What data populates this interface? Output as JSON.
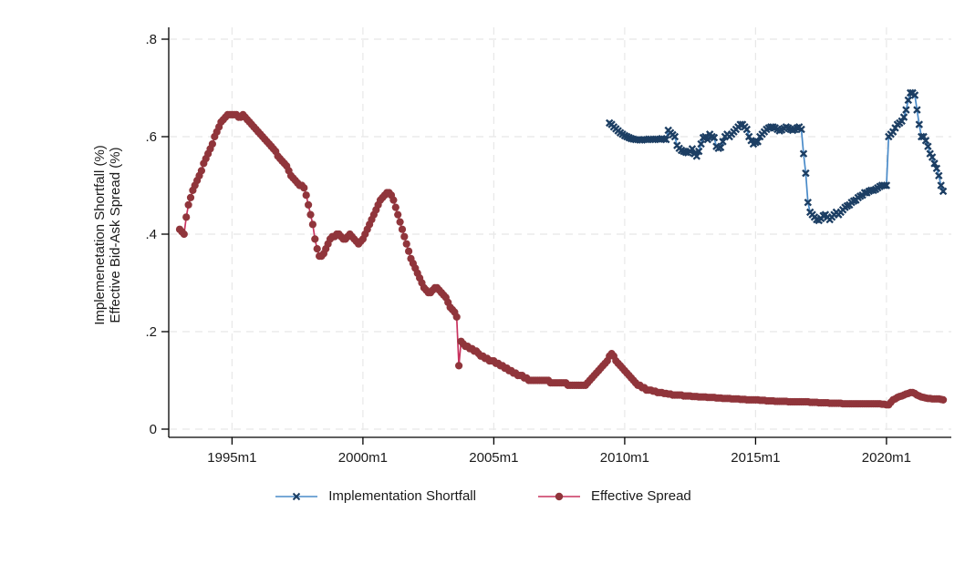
{
  "page": {
    "background": "#ffffff"
  },
  "chart_data": {
    "type": "line",
    "title": "",
    "xlabel": "",
    "ylabel_line1": "Implemenetation Shortfall (%)",
    "ylabel_line2": "Effective Bid-Ask Spread (%)",
    "x_tick_labels": [
      "1995m1",
      "2000m1",
      "2005m1",
      "2010m1",
      "2015m1",
      "2020m1"
    ],
    "y_tick_labels": [
      "0",
      ".2",
      ".4",
      ".6",
      ".8"
    ],
    "y_tick_values": [
      0,
      0.2,
      0.4,
      0.6,
      0.8
    ],
    "ylim": [
      0,
      0.8
    ],
    "xlim": [
      "1992m8",
      "2022m8"
    ],
    "grid": true,
    "grid_color": "#e8e8e8",
    "axis_color": "#000000",
    "legend_position": "bottom-center",
    "frequency": "monthly",
    "series": [
      {
        "name": "Effective Spread",
        "marker": "circle",
        "line_color": "#c9335f",
        "marker_color": "#90353b",
        "start": "1993m1",
        "values": [
          0.41,
          0.405,
          0.4,
          0.435,
          0.46,
          0.475,
          0.49,
          0.5,
          0.51,
          0.52,
          0.53,
          0.545,
          0.555,
          0.565,
          0.575,
          0.585,
          0.6,
          0.61,
          0.62,
          0.63,
          0.635,
          0.64,
          0.645,
          0.645,
          0.645,
          0.645,
          0.645,
          0.64,
          0.64,
          0.645,
          0.64,
          0.635,
          0.63,
          0.625,
          0.62,
          0.615,
          0.61,
          0.605,
          0.6,
          0.595,
          0.59,
          0.585,
          0.58,
          0.575,
          0.57,
          0.56,
          0.555,
          0.55,
          0.545,
          0.54,
          0.53,
          0.52,
          0.515,
          0.51,
          0.505,
          0.5,
          0.5,
          0.495,
          0.48,
          0.46,
          0.44,
          0.42,
          0.39,
          0.37,
          0.355,
          0.355,
          0.36,
          0.37,
          0.38,
          0.39,
          0.395,
          0.395,
          0.4,
          0.4,
          0.395,
          0.39,
          0.39,
          0.395,
          0.4,
          0.395,
          0.39,
          0.385,
          0.38,
          0.385,
          0.39,
          0.4,
          0.41,
          0.42,
          0.43,
          0.44,
          0.45,
          0.46,
          0.47,
          0.475,
          0.48,
          0.485,
          0.485,
          0.48,
          0.47,
          0.455,
          0.44,
          0.425,
          0.41,
          0.395,
          0.38,
          0.365,
          0.35,
          0.34,
          0.33,
          0.32,
          0.31,
          0.3,
          0.29,
          0.285,
          0.28,
          0.28,
          0.285,
          0.29,
          0.29,
          0.285,
          0.28,
          0.275,
          0.27,
          0.26,
          0.25,
          0.245,
          0.24,
          0.23,
          0.13,
          0.18,
          0.175,
          0.17,
          0.17,
          0.165,
          0.165,
          0.16,
          0.16,
          0.155,
          0.15,
          0.15,
          0.145,
          0.145,
          0.14,
          0.14,
          0.14,
          0.135,
          0.135,
          0.13,
          0.13,
          0.125,
          0.125,
          0.12,
          0.12,
          0.115,
          0.115,
          0.11,
          0.11,
          0.11,
          0.105,
          0.105,
          0.1,
          0.1,
          0.1,
          0.1,
          0.1,
          0.1,
          0.1,
          0.1,
          0.1,
          0.1,
          0.095,
          0.095,
          0.095,
          0.095,
          0.095,
          0.095,
          0.095,
          0.095,
          0.09,
          0.09,
          0.09,
          0.09,
          0.09,
          0.09,
          0.09,
          0.09,
          0.09,
          0.095,
          0.1,
          0.105,
          0.11,
          0.115,
          0.12,
          0.125,
          0.13,
          0.135,
          0.14,
          0.15,
          0.155,
          0.15,
          0.14,
          0.135,
          0.13,
          0.125,
          0.12,
          0.115,
          0.11,
          0.105,
          0.1,
          0.095,
          0.09,
          0.09,
          0.085,
          0.085,
          0.08,
          0.08,
          0.08,
          0.078,
          0.078,
          0.075,
          0.075,
          0.075,
          0.073,
          0.073,
          0.072,
          0.072,
          0.07,
          0.07,
          0.07,
          0.07,
          0.07,
          0.068,
          0.068,
          0.068,
          0.068,
          0.067,
          0.067,
          0.067,
          0.066,
          0.066,
          0.066,
          0.066,
          0.065,
          0.065,
          0.065,
          0.065,
          0.064,
          0.064,
          0.064,
          0.063,
          0.063,
          0.063,
          0.063,
          0.062,
          0.062,
          0.062,
          0.062,
          0.061,
          0.061,
          0.061,
          0.06,
          0.06,
          0.06,
          0.06,
          0.06,
          0.06,
          0.059,
          0.059,
          0.059,
          0.058,
          0.058,
          0.058,
          0.058,
          0.057,
          0.057,
          0.057,
          0.057,
          0.057,
          0.057,
          0.056,
          0.056,
          0.056,
          0.056,
          0.056,
          0.056,
          0.056,
          0.056,
          0.056,
          0.056,
          0.055,
          0.055,
          0.055,
          0.055,
          0.054,
          0.054,
          0.054,
          0.054,
          0.054,
          0.053,
          0.053,
          0.053,
          0.053,
          0.053,
          0.053,
          0.052,
          0.052,
          0.052,
          0.052,
          0.052,
          0.052,
          0.052,
          0.052,
          0.052,
          0.052,
          0.052,
          0.052,
          0.052,
          0.052,
          0.052,
          0.052,
          0.052,
          0.052,
          0.051,
          0.051,
          0.05,
          0.05,
          0.055,
          0.06,
          0.062,
          0.065,
          0.067,
          0.068,
          0.07,
          0.072,
          0.073,
          0.075,
          0.075,
          0.073,
          0.07,
          0.068,
          0.066,
          0.065,
          0.064,
          0.063,
          0.063,
          0.062,
          0.062,
          0.062,
          0.062,
          0.061,
          0.06
        ]
      },
      {
        "name": "Implementation Shortfall",
        "marker": "x",
        "line_color": "#4a8bc9",
        "marker_color": "#1c3e63",
        "start": "2009m6",
        "values": [
          0.628,
          0.625,
          0.62,
          0.616,
          0.612,
          0.608,
          0.605,
          0.602,
          0.6,
          0.598,
          0.596,
          0.595,
          0.594,
          0.594,
          0.593,
          0.593,
          0.594,
          0.594,
          0.595,
          0.595,
          0.594,
          0.594,
          0.595,
          0.595,
          0.596,
          0.595,
          0.594,
          0.613,
          0.608,
          0.604,
          0.6,
          0.582,
          0.576,
          0.572,
          0.57,
          0.568,
          0.567,
          0.57,
          0.575,
          0.565,
          0.56,
          0.57,
          0.585,
          0.598,
          0.6,
          0.594,
          0.605,
          0.6,
          0.598,
          0.58,
          0.576,
          0.578,
          0.59,
          0.6,
          0.605,
          0.6,
          0.605,
          0.61,
          0.615,
          0.62,
          0.625,
          0.625,
          0.62,
          0.615,
          0.6,
          0.592,
          0.585,
          0.588,
          0.59,
          0.6,
          0.605,
          0.61,
          0.615,
          0.618,
          0.62,
          0.62,
          0.618,
          0.615,
          0.612,
          0.614,
          0.617,
          0.62,
          0.618,
          0.615,
          0.613,
          0.615,
          0.618,
          0.62,
          0.615,
          0.565,
          0.525,
          0.465,
          0.445,
          0.44,
          0.435,
          0.43,
          0.428,
          0.432,
          0.438,
          0.44,
          0.435,
          0.43,
          0.435,
          0.44,
          0.445,
          0.44,
          0.445,
          0.45,
          0.455,
          0.458,
          0.46,
          0.465,
          0.468,
          0.47,
          0.475,
          0.478,
          0.48,
          0.485,
          0.485,
          0.488,
          0.49,
          0.49,
          0.492,
          0.495,
          0.498,
          0.5,
          0.5,
          0.5,
          0.6,
          0.605,
          0.61,
          0.618,
          0.625,
          0.628,
          0.632,
          0.64,
          0.655,
          0.675,
          0.69,
          0.69,
          0.685,
          0.655,
          0.625,
          0.6,
          0.6,
          0.592,
          0.58,
          0.565,
          0.558,
          0.545,
          0.535,
          0.52,
          0.5,
          0.488
        ]
      }
    ]
  }
}
